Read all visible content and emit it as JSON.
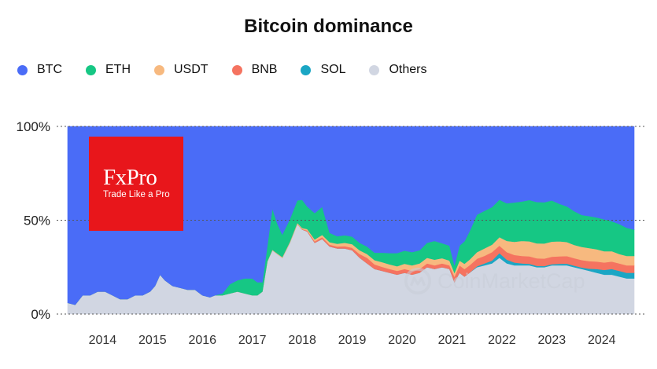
{
  "chart_data": {
    "type": "area",
    "stacked": true,
    "normalized": true,
    "title": "Bitcoin dominance",
    "legend_position": "top-left",
    "x_range": [
      2013.3,
      2024.65
    ],
    "y_range": [
      0,
      100
    ],
    "x_ticks": [
      "2014",
      "2015",
      "2016",
      "2017",
      "2018",
      "2019",
      "2020",
      "2021",
      "2022",
      "2023",
      "2024"
    ],
    "y_ticks": [
      "0%",
      "50%",
      "100%"
    ],
    "series_order_bottom_to_top": [
      "Others",
      "SOL",
      "BNB",
      "USDT",
      "ETH",
      "BTC"
    ],
    "series": [
      {
        "name": "BTC",
        "color": "#4a6cf7"
      },
      {
        "name": "ETH",
        "color": "#16c784"
      },
      {
        "name": "USDT",
        "color": "#f7b97f"
      },
      {
        "name": "BNB",
        "color": "#f57360"
      },
      {
        "name": "SOL",
        "color": "#1aa6c4"
      },
      {
        "name": "Others",
        "color": "#d1d6e2"
      }
    ],
    "x": [
      2013.3,
      2013.45,
      2013.6,
      2013.75,
      2013.9,
      2014.05,
      2014.2,
      2014.35,
      2014.5,
      2014.65,
      2014.8,
      2014.95,
      2015.05,
      2015.15,
      2015.25,
      2015.4,
      2015.55,
      2015.7,
      2015.85,
      2016.0,
      2016.15,
      2016.25,
      2016.4,
      2016.55,
      2016.7,
      2016.85,
      2017.0,
      2017.1,
      2017.2,
      2017.3,
      2017.4,
      2017.5,
      2017.6,
      2017.75,
      2017.9,
      2018.0,
      2018.1,
      2018.25,
      2018.4,
      2018.55,
      2018.7,
      2018.85,
      2019.0,
      2019.15,
      2019.3,
      2019.45,
      2019.6,
      2019.75,
      2019.9,
      2020.05,
      2020.2,
      2020.35,
      2020.5,
      2020.65,
      2020.8,
      2020.95,
      2021.05,
      2021.15,
      2021.25,
      2021.35,
      2021.5,
      2021.65,
      2021.8,
      2021.95,
      2022.1,
      2022.25,
      2022.4,
      2022.55,
      2022.7,
      2022.85,
      2023.0,
      2023.15,
      2023.3,
      2023.45,
      2023.6,
      2023.75,
      2023.9,
      2024.05,
      2024.2,
      2024.35,
      2024.5,
      2024.65
    ],
    "values": {
      "Others": [
        6,
        5,
        10,
        10,
        12,
        12,
        10,
        8,
        8,
        10,
        10,
        12,
        15,
        21,
        18,
        15,
        14,
        13,
        13,
        10,
        9,
        10,
        10,
        11,
        12,
        11,
        10,
        10,
        12,
        28,
        34,
        32,
        30,
        38,
        48,
        45,
        44,
        38,
        40,
        36,
        35,
        35,
        34,
        30,
        27,
        24,
        23,
        22,
        21,
        22,
        21,
        22,
        25,
        24,
        25,
        24,
        17,
        22,
        20,
        22,
        25,
        26,
        27,
        30,
        27,
        26,
        26,
        26,
        25,
        25,
        26,
        26,
        26,
        25,
        24,
        23,
        22,
        21,
        21,
        20,
        19,
        19
      ],
      "SOL": [
        0,
        0,
        0,
        0,
        0,
        0,
        0,
        0,
        0,
        0,
        0,
        0,
        0,
        0,
        0,
        0,
        0,
        0,
        0,
        0,
        0,
        0,
        0,
        0,
        0,
        0,
        0,
        0,
        0,
        0,
        0,
        0,
        0,
        0,
        0,
        0,
        0,
        0,
        0,
        0,
        0,
        0,
        0,
        0,
        0,
        0,
        0,
        0,
        0,
        0,
        0,
        0,
        0,
        0,
        0,
        0,
        0,
        0,
        0,
        0,
        0.5,
        1,
        1.5,
        2.5,
        2,
        1.5,
        1,
        0.8,
        0.7,
        0.6,
        0.6,
        0.8,
        0.9,
        0.8,
        0.8,
        1.2,
        2,
        2.5,
        3,
        3,
        3,
        3
      ],
      "BNB": [
        0,
        0,
        0,
        0,
        0,
        0,
        0,
        0,
        0,
        0,
        0,
        0,
        0,
        0,
        0,
        0,
        0,
        0,
        0,
        0,
        0,
        0,
        0,
        0,
        0,
        0,
        0,
        0,
        0,
        0,
        0,
        0,
        0,
        0,
        0,
        0.3,
        0.5,
        0.8,
        1,
        1,
        1,
        1.2,
        1.3,
        2,
        3,
        2.5,
        2.2,
        2,
        2,
        2,
        2,
        2,
        2,
        2,
        2,
        2,
        3,
        4,
        4,
        4,
        4,
        4,
        4.5,
        4,
        4,
        4,
        4,
        4,
        4,
        4,
        4,
        4,
        4,
        4,
        4,
        4,
        4,
        4,
        4,
        4,
        4,
        4
      ],
      "USDT": [
        0,
        0,
        0,
        0,
        0,
        0,
        0,
        0,
        0,
        0,
        0,
        0,
        0,
        0,
        0,
        0,
        0,
        0,
        0,
        0,
        0,
        0,
        0,
        0,
        0,
        0,
        0,
        0,
        0,
        0.2,
        0.3,
        0.3,
        0.4,
        0.5,
        0.6,
        0.6,
        0.8,
        1,
        1.2,
        1.3,
        1.5,
        1.8,
        2,
        2,
        2,
        2.2,
        2.5,
        2.5,
        2.5,
        2.8,
        3,
        3,
        3,
        3,
        2.8,
        2.5,
        2,
        2.5,
        2.8,
        3,
        3.5,
        4,
        4,
        4.5,
        6,
        7,
        8,
        8,
        8,
        8,
        8,
        8,
        7.5,
        7,
        7,
        7,
        6.5,
        6,
        5.5,
        5,
        5,
        5
      ],
      "ETH": [
        0,
        0,
        0,
        0,
        0,
        0,
        0,
        0,
        0,
        0,
        0,
        0,
        0,
        0,
        0,
        0,
        0,
        0,
        0,
        0,
        0,
        0,
        1,
        5,
        6,
        8,
        9,
        7,
        5,
        8,
        22,
        16,
        12,
        12,
        12,
        15,
        12,
        14,
        15,
        5,
        4,
        4,
        4,
        4,
        4,
        4,
        5,
        6,
        7,
        7,
        7,
        7,
        8,
        10,
        8,
        8,
        4,
        8,
        12,
        15,
        20,
        20,
        20,
        20,
        20,
        21,
        21,
        22,
        22,
        22,
        22,
        20,
        19,
        18,
        17,
        17,
        17,
        17,
        16,
        16,
        15,
        14
      ]
    }
  },
  "branding": {
    "logo_word": "FxPro",
    "logo_tagline": "Trade Like a Pro",
    "watermark": "CoinMarketCap"
  }
}
